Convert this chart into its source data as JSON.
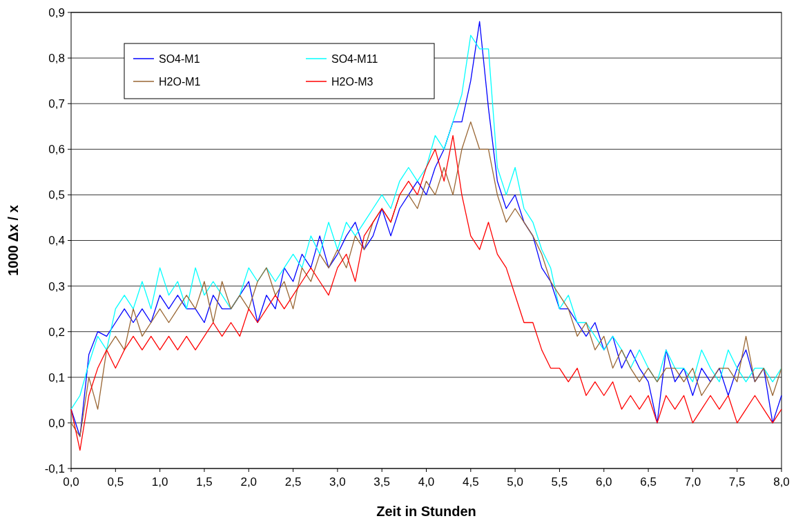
{
  "chart_data": {
    "type": "line",
    "xlabel": "Zeit in Stunden",
    "ylabel": "1000 Δx / x",
    "x": [
      0,
      0.1,
      0.2,
      0.3,
      0.4,
      0.5,
      0.6,
      0.7,
      0.8,
      0.9,
      1.0,
      1.1,
      1.2,
      1.3,
      1.4,
      1.5,
      1.6,
      1.7,
      1.8,
      1.9,
      2.0,
      2.1,
      2.2,
      2.3,
      2.4,
      2.5,
      2.6,
      2.7,
      2.8,
      2.9,
      3.0,
      3.1,
      3.2,
      3.3,
      3.4,
      3.5,
      3.6,
      3.7,
      3.8,
      3.9,
      4.0,
      4.1,
      4.2,
      4.3,
      4.4,
      4.5,
      4.6,
      4.7,
      4.8,
      4.9,
      5.0,
      5.1,
      5.2,
      5.3,
      5.4,
      5.5,
      5.6,
      5.7,
      5.8,
      5.9,
      6.0,
      6.1,
      6.2,
      6.3,
      6.4,
      6.5,
      6.6,
      6.7,
      6.8,
      6.9,
      7.0,
      7.1,
      7.2,
      7.3,
      7.4,
      7.5,
      7.6,
      7.7,
      7.8,
      7.9,
      8.0
    ],
    "series": [
      {
        "name": "SO4-M1",
        "color": "#0000ff",
        "values": [
          0.03,
          -0.03,
          0.15,
          0.2,
          0.19,
          0.22,
          0.25,
          0.22,
          0.25,
          0.22,
          0.28,
          0.25,
          0.28,
          0.25,
          0.25,
          0.22,
          0.28,
          0.25,
          0.25,
          0.28,
          0.31,
          0.22,
          0.28,
          0.25,
          0.34,
          0.31,
          0.37,
          0.34,
          0.41,
          0.34,
          0.37,
          0.41,
          0.44,
          0.38,
          0.41,
          0.47,
          0.41,
          0.47,
          0.5,
          0.53,
          0.5,
          0.56,
          0.6,
          0.66,
          0.66,
          0.75,
          0.88,
          0.69,
          0.53,
          0.47,
          0.5,
          0.44,
          0.41,
          0.34,
          0.31,
          0.25,
          0.25,
          0.22,
          0.19,
          0.22,
          0.16,
          0.19,
          0.12,
          0.16,
          0.12,
          0.09,
          0.0,
          0.16,
          0.09,
          0.12,
          0.06,
          0.12,
          0.09,
          0.12,
          0.06,
          0.12,
          0.16,
          0.09,
          0.12,
          0.0,
          0.06
        ]
      },
      {
        "name": "SO4-M11",
        "color": "#00ffff",
        "values": [
          0.03,
          0.06,
          0.13,
          0.19,
          0.16,
          0.25,
          0.28,
          0.25,
          0.31,
          0.25,
          0.34,
          0.28,
          0.31,
          0.25,
          0.34,
          0.28,
          0.31,
          0.28,
          0.25,
          0.28,
          0.34,
          0.31,
          0.34,
          0.31,
          0.34,
          0.37,
          0.34,
          0.41,
          0.37,
          0.44,
          0.38,
          0.44,
          0.41,
          0.44,
          0.47,
          0.5,
          0.47,
          0.53,
          0.56,
          0.53,
          0.56,
          0.63,
          0.6,
          0.66,
          0.72,
          0.85,
          0.82,
          0.82,
          0.56,
          0.5,
          0.56,
          0.47,
          0.44,
          0.38,
          0.34,
          0.25,
          0.28,
          0.22,
          0.22,
          0.19,
          0.16,
          0.19,
          0.16,
          0.12,
          0.16,
          0.12,
          0.09,
          0.16,
          0.12,
          0.12,
          0.09,
          0.16,
          0.12,
          0.09,
          0.16,
          0.12,
          0.09,
          0.12,
          0.12,
          0.09,
          0.12
        ]
      },
      {
        "name": "H2O-M1",
        "color": "#996633",
        "values": [
          0.0,
          -0.03,
          0.1,
          0.03,
          0.16,
          0.19,
          0.16,
          0.25,
          0.19,
          0.22,
          0.25,
          0.22,
          0.25,
          0.28,
          0.25,
          0.31,
          0.22,
          0.31,
          0.25,
          0.28,
          0.25,
          0.31,
          0.34,
          0.28,
          0.31,
          0.25,
          0.34,
          0.31,
          0.37,
          0.34,
          0.38,
          0.34,
          0.41,
          0.38,
          0.44,
          0.47,
          0.44,
          0.5,
          0.5,
          0.47,
          0.53,
          0.5,
          0.56,
          0.5,
          0.6,
          0.66,
          0.6,
          0.6,
          0.5,
          0.44,
          0.47,
          0.44,
          0.41,
          0.37,
          0.31,
          0.28,
          0.25,
          0.19,
          0.22,
          0.16,
          0.19,
          0.12,
          0.16,
          0.12,
          0.09,
          0.12,
          0.09,
          0.12,
          0.12,
          0.09,
          0.12,
          0.06,
          0.09,
          0.12,
          0.12,
          0.09,
          0.19,
          0.09,
          0.12,
          0.06,
          0.12
        ]
      },
      {
        "name": "H2O-M3",
        "color": "#ff0000",
        "values": [
          0.03,
          -0.06,
          0.06,
          0.12,
          0.16,
          0.12,
          0.16,
          0.19,
          0.16,
          0.19,
          0.16,
          0.19,
          0.16,
          0.19,
          0.16,
          0.19,
          0.22,
          0.19,
          0.22,
          0.19,
          0.25,
          0.22,
          0.25,
          0.28,
          0.25,
          0.28,
          0.31,
          0.34,
          0.31,
          0.28,
          0.34,
          0.37,
          0.31,
          0.41,
          0.44,
          0.47,
          0.44,
          0.5,
          0.53,
          0.5,
          0.56,
          0.6,
          0.53,
          0.63,
          0.5,
          0.41,
          0.38,
          0.44,
          0.37,
          0.34,
          0.28,
          0.22,
          0.22,
          0.16,
          0.12,
          0.12,
          0.09,
          0.12,
          0.06,
          0.09,
          0.06,
          0.09,
          0.03,
          0.06,
          0.03,
          0.06,
          0.0,
          0.06,
          0.03,
          0.06,
          0.0,
          0.03,
          0.06,
          0.03,
          0.06,
          0.0,
          0.03,
          0.06,
          0.03,
          0.0,
          0.03
        ]
      }
    ],
    "xlim": [
      0,
      8
    ],
    "xticks": [
      {
        "value": 0,
        "label": "0,0"
      },
      {
        "value": 0.5,
        "label": "0,5"
      },
      {
        "value": 1,
        "label": "1,0"
      },
      {
        "value": 1.5,
        "label": "1,5"
      },
      {
        "value": 2,
        "label": "2,0"
      },
      {
        "value": 2.5,
        "label": "2,5"
      },
      {
        "value": 3,
        "label": "3,0"
      },
      {
        "value": 3.5,
        "label": "3,5"
      },
      {
        "value": 4,
        "label": "4,0"
      },
      {
        "value": 4.5,
        "label": "4,5"
      },
      {
        "value": 5,
        "label": "5,0"
      },
      {
        "value": 5.5,
        "label": "5,5"
      },
      {
        "value": 6,
        "label": "6,0"
      },
      {
        "value": 6.5,
        "label": "6,5"
      },
      {
        "value": 7,
        "label": "7,0"
      },
      {
        "value": 7.5,
        "label": "7,5"
      },
      {
        "value": 8,
        "label": "8,0"
      }
    ],
    "ylim": [
      -0.1,
      0.9
    ],
    "yticks": [
      {
        "value": -0.1,
        "label": "-0,1"
      },
      {
        "value": 0,
        "label": "0,0"
      },
      {
        "value": 0.1,
        "label": "0,1"
      },
      {
        "value": 0.2,
        "label": "0,2"
      },
      {
        "value": 0.3,
        "label": "0,3"
      },
      {
        "value": 0.4,
        "label": "0,4"
      },
      {
        "value": 0.5,
        "label": "0,5"
      },
      {
        "value": 0.6,
        "label": "0,6"
      },
      {
        "value": 0.7,
        "label": "0,7"
      },
      {
        "value": 0.8,
        "label": "0,8"
      },
      {
        "value": 0.9,
        "label": "0,9"
      }
    ],
    "grid": "y",
    "legend": "top left",
    "marker": "none",
    "line_style": "solid"
  }
}
